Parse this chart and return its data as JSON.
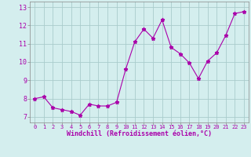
{
  "x": [
    0,
    1,
    2,
    3,
    4,
    5,
    6,
    7,
    8,
    9,
    10,
    11,
    12,
    13,
    14,
    15,
    16,
    17,
    18,
    19,
    20,
    21,
    22,
    23
  ],
  "y": [
    8.0,
    8.1,
    7.5,
    7.4,
    7.3,
    7.1,
    7.7,
    7.6,
    7.6,
    7.8,
    9.6,
    11.1,
    11.8,
    11.3,
    12.3,
    10.8,
    10.45,
    9.95,
    9.1,
    10.05,
    10.5,
    11.45,
    12.65,
    12.75
  ],
  "line_color": "#aa00aa",
  "marker": "*",
  "marker_color": "#aa00aa",
  "bg_color": "#d4eeee",
  "grid_color": "#aacccc",
  "xlabel": "Windchill (Refroidissement éolien,°C)",
  "ylabel_ticks": [
    7,
    8,
    9,
    10,
    11,
    12,
    13
  ],
  "xlim": [
    -0.5,
    23.5
  ],
  "ylim": [
    6.7,
    13.3
  ]
}
